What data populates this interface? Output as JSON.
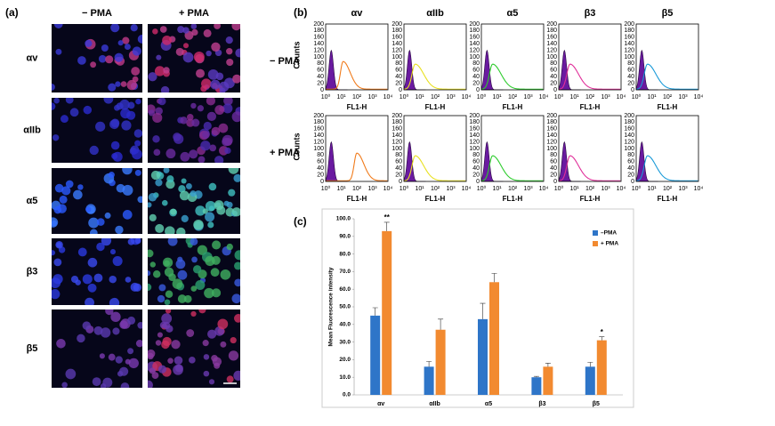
{
  "panel_a": {
    "label": "(a)",
    "columns": [
      "− PMA",
      "+ PMA"
    ],
    "rows": [
      "αv",
      "αIIb",
      "α5",
      "β3",
      "β5"
    ]
  },
  "panel_b": {
    "label": "(b)",
    "columns": [
      "αv",
      "αIIb",
      "α5",
      "β3",
      "β5"
    ],
    "rows": [
      "− PMA",
      "+ PMA"
    ],
    "y_label": "Counts",
    "x_label": "FL1-H",
    "yticks": [
      0,
      20,
      40,
      60,
      80,
      100,
      120,
      140,
      160,
      180,
      200
    ],
    "xticks": [
      "10⁰",
      "10¹",
      "10²",
      "10³",
      "10⁴"
    ]
  },
  "chart_data": {
    "type": "bar",
    "label": "(c)",
    "y_label": "Mean Fluorescence intensity",
    "categories": [
      "αv",
      "αIIb",
      "α5",
      "β3",
      "β5"
    ],
    "series": [
      {
        "name": "–PMA",
        "color": "#2e75c8",
        "values": [
          45,
          16,
          43,
          10,
          16
        ],
        "errors": [
          4.5,
          3,
          9,
          0.5,
          2.5
        ],
        "annotations": [
          null,
          null,
          null,
          null,
          null
        ]
      },
      {
        "name": "+ PMA",
        "color": "#f28a30",
        "values": [
          93,
          37,
          64,
          16,
          31
        ],
        "errors": [
          5,
          6,
          5,
          2,
          2
        ],
        "annotations": [
          "**",
          null,
          null,
          null,
          "*"
        ]
      }
    ],
    "ylim": [
      0,
      100
    ],
    "yticks": [
      {
        "value": 0,
        "label": "0.0"
      },
      {
        "value": 10,
        "label": "10.0"
      },
      {
        "value": 20,
        "label": "20.0"
      },
      {
        "value": 30,
        "label": "30.0"
      },
      {
        "value": 40,
        "label": "40.0"
      },
      {
        "value": 50,
        "label": "50.0"
      },
      {
        "value": 60,
        "label": "60.0"
      },
      {
        "value": 70,
        "label": "70.0"
      },
      {
        "value": 80,
        "label": "80.0"
      },
      {
        "value": 90,
        "label": "90.0"
      },
      {
        "value": 100,
        "label": "100.0"
      }
    ],
    "legend": "upper right"
  }
}
